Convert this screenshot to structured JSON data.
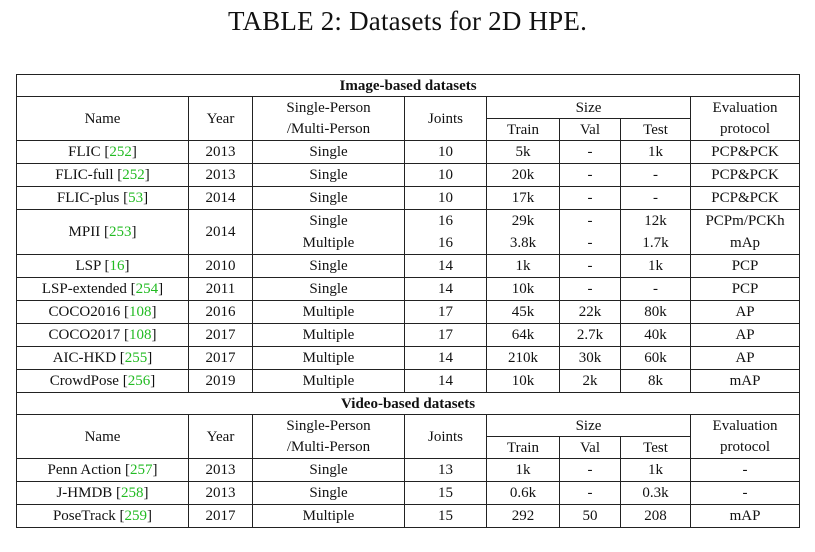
{
  "title": "TABLE 2: Datasets for 2D HPE.",
  "sections": {
    "image": "Image-based datasets",
    "video": "Video-based datasets"
  },
  "header": {
    "name": "Name",
    "year": "Year",
    "sp_mp_1": "Single-Person",
    "sp_mp_2": "/Multi-Person",
    "joints": "Joints",
    "size": "Size",
    "train": "Train",
    "val": "Val",
    "test": "Test",
    "eval_1": "Evaluation",
    "eval_2": "protocol"
  },
  "image_rows": [
    {
      "name": "FLIC",
      "ref": "252",
      "year": "2013",
      "mode": "Single",
      "joints": "10",
      "train": "5k",
      "val": "-",
      "test": "1k",
      "eval": "PCP&PCK"
    },
    {
      "name": "FLIC-full",
      "ref": "252",
      "year": "2013",
      "mode": "Single",
      "joints": "10",
      "train": "20k",
      "val": "-",
      "test": "-",
      "eval": "PCP&PCK"
    },
    {
      "name": "FLIC-plus",
      "ref": "53",
      "year": "2014",
      "mode": "Single",
      "joints": "10",
      "train": "17k",
      "val": "-",
      "test": "-",
      "eval": "PCP&PCK"
    },
    {
      "name": "MPII",
      "ref": "253",
      "year": "2014",
      "mode_a": "Single",
      "joints_a": "16",
      "train_a": "29k",
      "val_a": "-",
      "test_a": "12k",
      "eval_a": "PCPm/PCKh",
      "mode_b": "Multiple",
      "joints_b": "16",
      "train_b": "3.8k",
      "val_b": "-",
      "test_b": "1.7k",
      "eval_b": "mAp"
    },
    {
      "name": "LSP",
      "ref": "16",
      "year": "2010",
      "mode": "Single",
      "joints": "14",
      "train": "1k",
      "val": "-",
      "test": "1k",
      "eval": "PCP"
    },
    {
      "name": "LSP-extended",
      "ref": "254",
      "year": "2011",
      "mode": "Single",
      "joints": "14",
      "train": "10k",
      "val": "-",
      "test": "-",
      "eval": "PCP"
    },
    {
      "name": "COCO2016",
      "ref": "108",
      "year": "2016",
      "mode": "Multiple",
      "joints": "17",
      "train": "45k",
      "val": "22k",
      "test": "80k",
      "eval": "AP"
    },
    {
      "name": "COCO2017",
      "ref": "108",
      "year": "2017",
      "mode": "Multiple",
      "joints": "17",
      "train": "64k",
      "val": "2.7k",
      "test": "40k",
      "eval": "AP"
    },
    {
      "name": "AIC-HKD",
      "ref": "255",
      "year": "2017",
      "mode": "Multiple",
      "joints": "14",
      "train": "210k",
      "val": "30k",
      "test": "60k",
      "eval": "AP"
    },
    {
      "name": "CrowdPose",
      "ref": "256",
      "year": "2019",
      "mode": "Multiple",
      "joints": "14",
      "train": "10k",
      "val": "2k",
      "test": "8k",
      "eval": "mAP"
    }
  ],
  "video_rows": [
    {
      "name": "Penn Action",
      "ref": "257",
      "year": "2013",
      "mode": "Single",
      "joints": "13",
      "train": "1k",
      "val": "-",
      "test": "1k",
      "eval": "-"
    },
    {
      "name": "J-HMDB",
      "ref": "258",
      "year": "2013",
      "mode": "Single",
      "joints": "15",
      "train": "0.6k",
      "val": "-",
      "test": "0.3k",
      "eval": "-"
    },
    {
      "name": "PoseTrack",
      "ref": "259",
      "year": "2017",
      "mode": "Multiple",
      "joints": "15",
      "train": "292",
      "val": "50",
      "test": "208",
      "eval": "mAP"
    }
  ]
}
